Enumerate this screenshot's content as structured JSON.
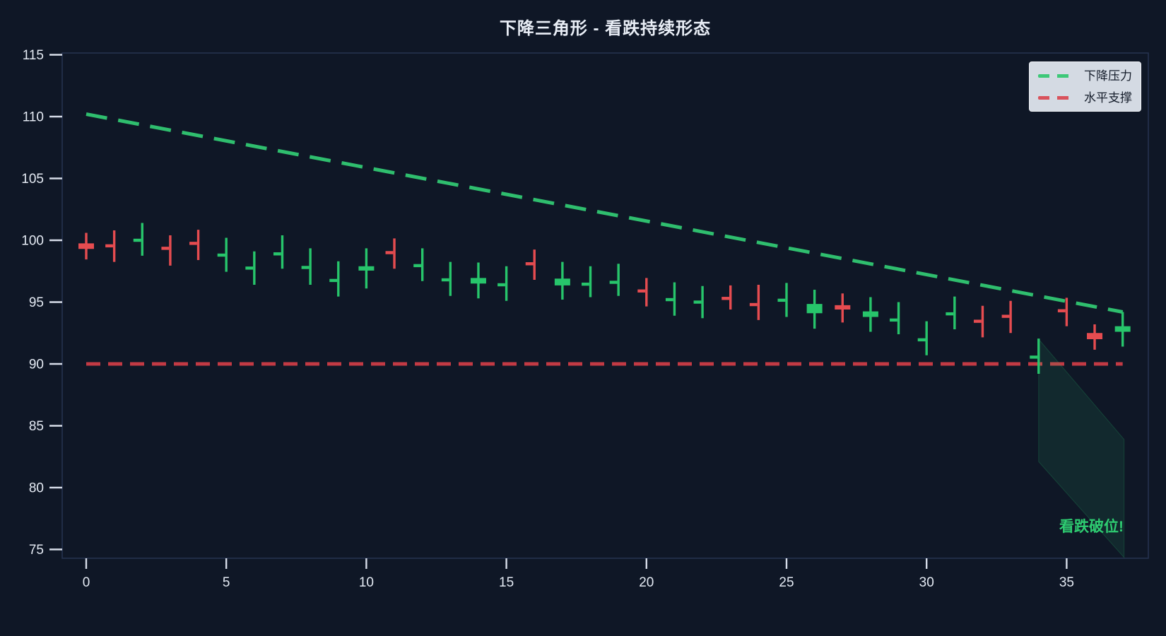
{
  "title": "下降三角形 - 看跌持续形态",
  "legend": [
    {
      "label": "下降压力",
      "color": "#3dc878",
      "style": "dashed"
    },
    {
      "label": "水平支撑",
      "color": "#d9525c",
      "style": "dashed"
    }
  ],
  "annotation": {
    "text": "看跌破位!",
    "color": "#2ecc71"
  },
  "colors": {
    "background": "#0f1726",
    "frame": "#273351",
    "tick": "#d7dde9",
    "tick_label": "#e4eaf3",
    "candle_up": "#27c56b",
    "candle_down": "#e64c50",
    "trendline": "#2fbe6e",
    "support": "#c23a44",
    "breakout_fill": "rgba(46,204,113,0.10)",
    "breakout_edge": "rgba(46,204,113,0.20)"
  },
  "chart_data": {
    "type": "candlestick",
    "title": "下降三角形 - 看跌持续形态",
    "xlabel": "",
    "ylabel": "",
    "xlim": [
      -0.9,
      37.9
    ],
    "ylim": [
      74.3,
      115.1
    ],
    "x_ticks": [
      0,
      5,
      10,
      15,
      20,
      25,
      30,
      35
    ],
    "y_ticks": [
      75,
      80,
      85,
      90,
      95,
      100,
      105,
      110,
      115
    ],
    "grid": false,
    "legend_position": "upper right",
    "ohlc_format": [
      "open",
      "high",
      "low",
      "close"
    ],
    "candles": [
      [
        99.75,
        100.6,
        98.45,
        99.3
      ],
      [
        99.55,
        100.8,
        98.25,
        99.45
      ],
      [
        100.0,
        101.4,
        98.75,
        100.15
      ],
      [
        99.35,
        100.4,
        97.95,
        99.1
      ],
      [
        99.75,
        100.85,
        98.4,
        99.6
      ],
      [
        98.8,
        100.2,
        97.45,
        99.0
      ],
      [
        97.75,
        99.1,
        96.4,
        98.0
      ],
      [
        98.9,
        100.4,
        97.7,
        99.1
      ],
      [
        97.8,
        99.35,
        96.4,
        98.05
      ],
      [
        96.75,
        98.3,
        95.45,
        97.05
      ],
      [
        97.55,
        99.35,
        96.1,
        97.9
      ],
      [
        99.0,
        100.15,
        97.7,
        98.85
      ],
      [
        97.95,
        99.35,
        96.7,
        98.1
      ],
      [
        96.8,
        98.25,
        95.5,
        97.05
      ],
      [
        96.5,
        98.2,
        95.3,
        96.95
      ],
      [
        96.4,
        97.9,
        95.1,
        96.6
      ],
      [
        98.1,
        99.25,
        96.8,
        97.9
      ],
      [
        96.35,
        98.25,
        95.2,
        96.9
      ],
      [
        96.45,
        97.9,
        95.4,
        96.6
      ],
      [
        96.6,
        98.1,
        95.5,
        96.7
      ],
      [
        95.9,
        96.95,
        94.65,
        95.65
      ],
      [
        95.2,
        96.6,
        93.9,
        95.4
      ],
      [
        95.0,
        96.3,
        93.7,
        95.1
      ],
      [
        95.3,
        96.35,
        94.4,
        95.1
      ],
      [
        94.8,
        96.4,
        93.55,
        94.5
      ],
      [
        95.15,
        96.55,
        93.8,
        95.3
      ],
      [
        94.1,
        96.0,
        92.85,
        94.85
      ],
      [
        94.75,
        95.7,
        93.35,
        94.4
      ],
      [
        93.8,
        95.4,
        92.6,
        94.25
      ],
      [
        93.55,
        95.0,
        92.4,
        93.65
      ],
      [
        91.95,
        93.45,
        90.7,
        92.2
      ],
      [
        94.05,
        95.45,
        92.8,
        94.3
      ],
      [
        93.45,
        94.7,
        92.15,
        93.35
      ],
      [
        93.85,
        95.1,
        92.5,
        93.75
      ],
      [
        90.55,
        92.05,
        89.2,
        90.7
      ],
      [
        94.3,
        95.35,
        93.05,
        94.1
      ],
      [
        92.5,
        93.2,
        91.15,
        92.0
      ],
      [
        92.6,
        94.2,
        91.4,
        93.05
      ]
    ],
    "lines": [
      {
        "name": "下降压力",
        "points": [
          [
            0,
            110.2
          ],
          [
            37,
            94.2
          ]
        ],
        "color": "#2fbe6e",
        "dashed": true
      },
      {
        "name": "水平支撑",
        "points": [
          [
            0,
            90
          ],
          [
            37,
            90
          ]
        ],
        "color": "#c23a44",
        "dashed": true
      }
    ],
    "breakout_polygon": [
      [
        34,
        92.0
      ],
      [
        37.05,
        83.9
      ],
      [
        37.05,
        74.35
      ],
      [
        34,
        82.1
      ]
    ],
    "annotation": {
      "text": "看跌破位!",
      "x": 36.2,
      "y": 76.6
    }
  }
}
